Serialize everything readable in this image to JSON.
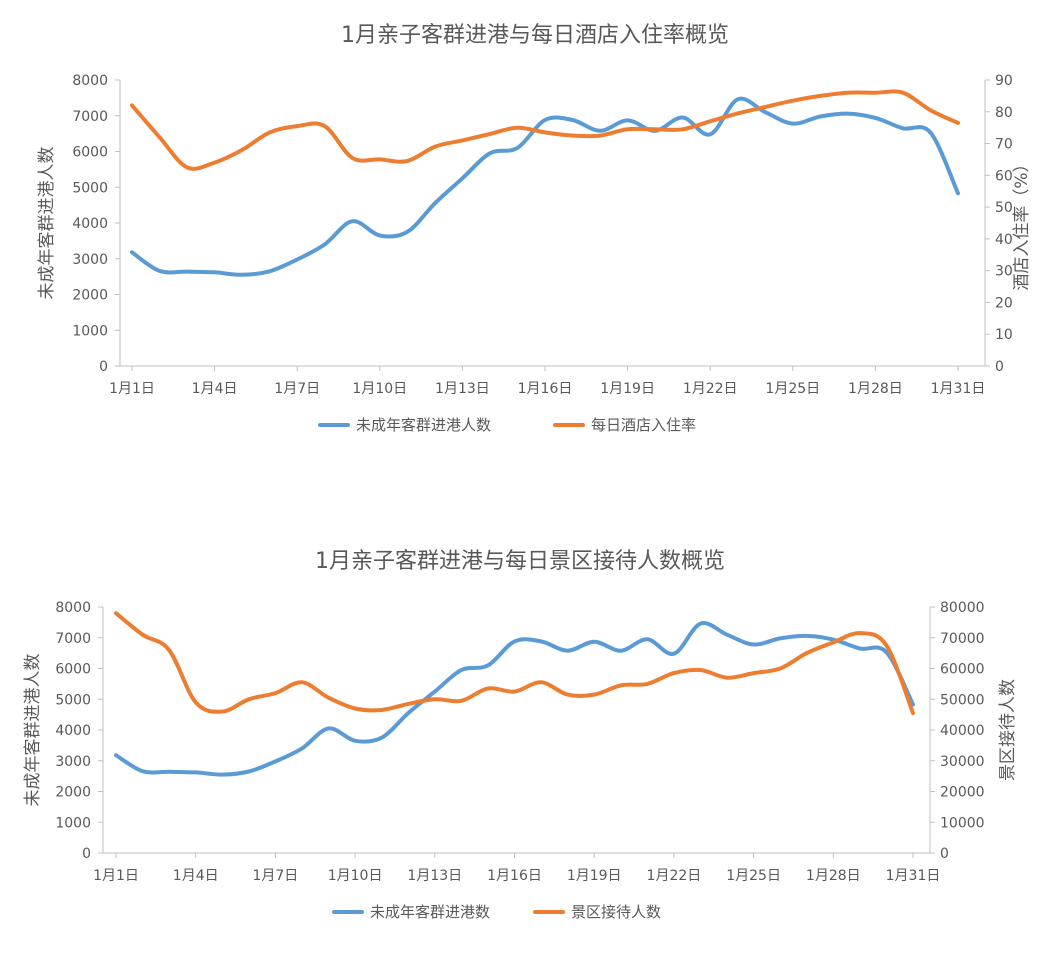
{
  "chart_data": [
    {
      "type": "line",
      "title": "1月亲子客群进港与每日酒店入住率概览",
      "categories": [
        "1月1日",
        "1月2日",
        "1月3日",
        "1月4日",
        "1月5日",
        "1月6日",
        "1月7日",
        "1月8日",
        "1月9日",
        "1月10日",
        "1月11日",
        "1月12日",
        "1月13日",
        "1月14日",
        "1月15日",
        "1月16日",
        "1月17日",
        "1月18日",
        "1月19日",
        "1月20日",
        "1月21日",
        "1月22日",
        "1月23日",
        "1月24日",
        "1月25日",
        "1月26日",
        "1月27日",
        "1月28日",
        "1月29日",
        "1月30日",
        "1月31日"
      ],
      "x_tick_labels": [
        "1月1日",
        "1月4日",
        "1月7日",
        "1月10日",
        "1月13日",
        "1月16日",
        "1月19日",
        "1月22日",
        "1月25日",
        "1月28日",
        "1月31日"
      ],
      "ylabel": "未成年客群进港人数",
      "ylim": [
        0,
        8000
      ],
      "y_ticks": [
        "0",
        "1000",
        "2000",
        "3000",
        "4000",
        "5000",
        "6000",
        "7000",
        "8000"
      ],
      "y2label": "酒店入住率（%）",
      "y2lim": [
        0,
        90
      ],
      "y2_ticks": [
        "0",
        "10",
        "20",
        "30",
        "40",
        "50",
        "60",
        "70",
        "80",
        "90"
      ],
      "legend_position": "bottom",
      "series": [
        {
          "name": "未成年客群进港人数",
          "axis": "left",
          "color": "#5B9BD5",
          "values": [
            3180,
            2660,
            2640,
            2620,
            2550,
            2650,
            2980,
            3400,
            4050,
            3650,
            3750,
            4550,
            5250,
            5950,
            6100,
            6880,
            6880,
            6580,
            6870,
            6580,
            6950,
            6480,
            7460,
            7100,
            6780,
            6980,
            7060,
            6940,
            6650,
            6530,
            4830
          ]
        },
        {
          "name": "每日酒店入住率",
          "axis": "right",
          "color": "#ED7D31",
          "values": [
            82,
            72,
            62.5,
            64,
            68,
            73.5,
            75.5,
            75.5,
            65.5,
            65,
            64.5,
            69,
            71,
            73,
            75,
            73.5,
            72.5,
            72.5,
            74.5,
            74.5,
            74.5,
            77,
            79.5,
            81.5,
            83.5,
            85,
            86,
            86,
            86,
            80.5,
            76.5
          ]
        }
      ]
    },
    {
      "type": "line",
      "title": "1月亲子客群进港与每日景区接待人数概览",
      "categories": [
        "1月1日",
        "1月2日",
        "1月3日",
        "1月4日",
        "1月5日",
        "1月6日",
        "1月7日",
        "1月8日",
        "1月9日",
        "1月10日",
        "1月11日",
        "1月12日",
        "1月13日",
        "1月14日",
        "1月15日",
        "1月16日",
        "1月17日",
        "1月18日",
        "1月19日",
        "1月20日",
        "1月21日",
        "1月22日",
        "1月23日",
        "1月24日",
        "1月25日",
        "1月26日",
        "1月27日",
        "1月28日",
        "1月29日",
        "1月30日",
        "1月31日"
      ],
      "x_tick_labels": [
        "1月1日",
        "1月4日",
        "1月7日",
        "1月10日",
        "1月13日",
        "1月16日",
        "1月19日",
        "1月22日",
        "1月25日",
        "1月28日",
        "1月31日"
      ],
      "ylabel": "未成年客群进港人数",
      "ylim": [
        0,
        8000
      ],
      "y_ticks": [
        "0",
        "1000",
        "2000",
        "3000",
        "4000",
        "5000",
        "6000",
        "7000",
        "8000"
      ],
      "y2label": "景区接待人数",
      "y2lim": [
        0,
        80000
      ],
      "y2_ticks": [
        "0",
        "10000",
        "20000",
        "30000",
        "40000",
        "50000",
        "60000",
        "70000",
        "80000"
      ],
      "legend_position": "bottom",
      "series": [
        {
          "name": "未成年客群进港数",
          "axis": "left",
          "color": "#5B9BD5",
          "values": [
            3180,
            2660,
            2640,
            2620,
            2550,
            2650,
            2980,
            3400,
            4050,
            3650,
            3750,
            4550,
            5250,
            5950,
            6100,
            6880,
            6880,
            6580,
            6870,
            6580,
            6950,
            6480,
            7460,
            7100,
            6780,
            6980,
            7060,
            6940,
            6650,
            6530,
            4830
          ]
        },
        {
          "name": "景区接待人数",
          "axis": "right",
          "color": "#ED7D31",
          "values": [
            78000,
            71000,
            66000,
            49000,
            46000,
            50000,
            52000,
            55500,
            50500,
            47000,
            46500,
            48500,
            50000,
            49500,
            53500,
            52500,
            55500,
            51500,
            51500,
            54500,
            55000,
            58500,
            59500,
            57000,
            58500,
            60000,
            65000,
            68500,
            71500,
            67500,
            45500
          ]
        }
      ]
    }
  ]
}
